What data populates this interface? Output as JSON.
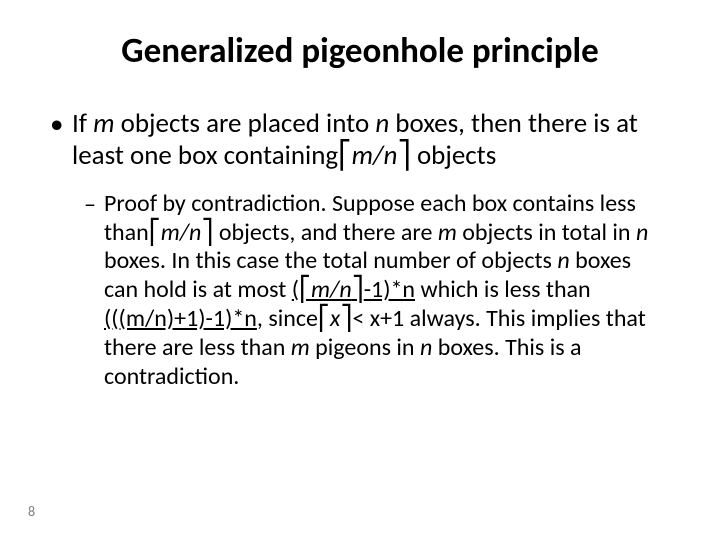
{
  "title": {
    "text": "Generalized pigeonhole principle",
    "fontsize": 35,
    "color": "#000000",
    "weight": 700
  },
  "body_fontsize": 27,
  "sub_fontsize": 24,
  "pagenum_fontsize": 14,
  "page_number": "8",
  "strings": {
    "if": "If ",
    "m": "m",
    "objects_placed": " objects are placed into ",
    "n": "n",
    "boxes_then": " boxes, then there is at least one box containing",
    "ceil_open": "⎡",
    "ceil_close": "⎤",
    "m_over_n": "m/n",
    "objects_end": " objects",
    "dash": "–",
    "bullet_dot": "•",
    "proof": "Proof by contradiction. Suppose each box contains less than",
    "space": " ",
    "objects_and": " objects, and there are ",
    "objects_in_total": " objects in total in ",
    "boxes_in_case": " boxes. In this case the total number of objects ",
    "boxes_can_hold": " boxes can hold is at most ",
    "lp": "(",
    "minus1n": "-1)*n",
    "which_less": " which is less than ",
    "expr2": "(((m/n)+1)-1)*n",
    "since": ", since",
    "x": "x",
    "lt": "< x+1 always.  This implies that there are less than ",
    "pigeons_in": " pigeons in ",
    "boxes_contra": " boxes. This is a contradiction."
  },
  "colors": {
    "background": "#ffffff",
    "text": "#000000",
    "pagenum": "#7f7f7f"
  }
}
